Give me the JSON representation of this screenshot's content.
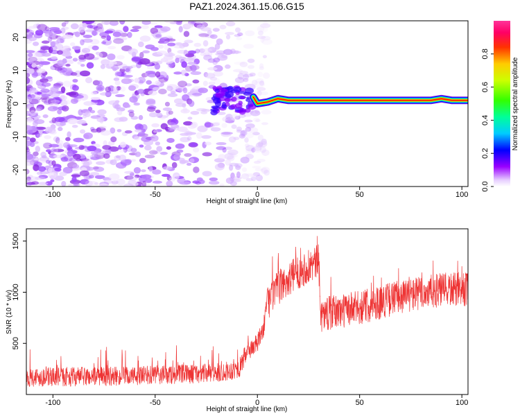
{
  "title": "PAZ1.2024.361.15.06.G15",
  "chart_data": [
    {
      "type": "heatmap",
      "xlabel": "Height of straight line (km)",
      "ylabel": "Frequency (Hz)",
      "xlim": [
        -113,
        103
      ],
      "ylim": [
        -25,
        25
      ],
      "x_ticks": [
        -100,
        -50,
        0,
        50,
        100
      ],
      "y_ticks": [
        -20,
        -10,
        0,
        10,
        20
      ],
      "colorbar": {
        "label": "Normalized spectral amplitude",
        "range": [
          0,
          1
        ],
        "ticks": [
          0.0,
          0.2,
          0.4,
          0.6,
          0.8
        ],
        "colormap": "rainbow (magenta-blue-cyan-green-yellow-red-pink)"
      },
      "features": {
        "noise_region_x": [
          -113,
          -5
        ],
        "signal_line": [
          {
            "x": -2,
            "y": 2
          },
          {
            "x": 0,
            "y": 0
          },
          {
            "x": 5,
            "y": 0.5
          },
          {
            "x": 10,
            "y": 1.5
          },
          {
            "x": 15,
            "y": 1
          },
          {
            "x": 30,
            "y": 1
          },
          {
            "x": 60,
            "y": 1
          },
          {
            "x": 85,
            "y": 1
          },
          {
            "x": 90,
            "y": 1.5
          },
          {
            "x": 95,
            "y": 1
          },
          {
            "x": 103,
            "y": 1
          }
        ],
        "signal_peak_amplitude": 0.95
      }
    },
    {
      "type": "line",
      "xlabel": "Height of straight line (km)",
      "ylabel": "SNR (10 * v/v)",
      "xlim": [
        -113,
        103
      ],
      "ylim": [
        0,
        1620
      ],
      "x_ticks": [
        -100,
        -50,
        0,
        50,
        100
      ],
      "y_ticks": [
        500,
        1000,
        1500
      ],
      "line_color": "#ee3333",
      "series_trend": [
        {
          "x": -113,
          "y": 170
        },
        {
          "x": -60,
          "y": 180
        },
        {
          "x": -20,
          "y": 210
        },
        {
          "x": -9,
          "y": 250
        },
        {
          "x": -5,
          "y": 420
        },
        {
          "x": 0,
          "y": 500
        },
        {
          "x": 3,
          "y": 650
        },
        {
          "x": 5,
          "y": 900
        },
        {
          "x": 10,
          "y": 1040
        },
        {
          "x": 20,
          "y": 1200
        },
        {
          "x": 30,
          "y": 1300
        },
        {
          "x": 31,
          "y": 780
        },
        {
          "x": 50,
          "y": 850
        },
        {
          "x": 70,
          "y": 960
        },
        {
          "x": 90,
          "y": 1020
        },
        {
          "x": 103,
          "y": 1030
        }
      ]
    }
  ],
  "colors": {
    "line": "#ee3333",
    "frame": "#000000",
    "background": "#ffffff"
  }
}
